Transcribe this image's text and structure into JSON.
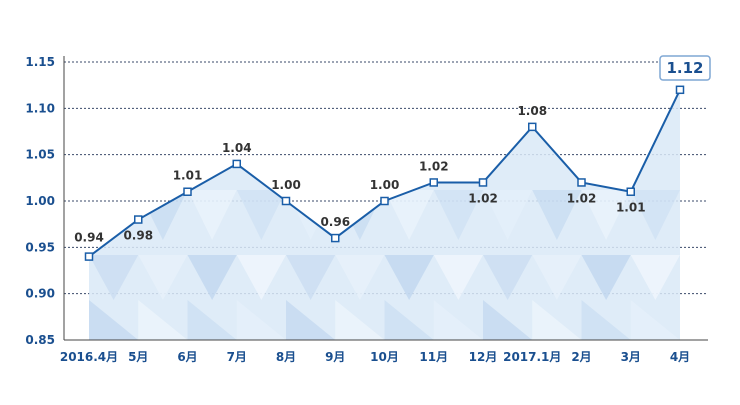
{
  "chart_data": {
    "type": "area",
    "title": "",
    "xlabel": "",
    "ylabel": "",
    "categories": [
      "2016.4月",
      "5月",
      "6月",
      "7月",
      "8月",
      "9月",
      "10月",
      "11月",
      "12月",
      "2017.1月",
      "2月",
      "3月",
      "4月"
    ],
    "series": [
      {
        "values": [
          0.94,
          0.98,
          1.01,
          1.04,
          1.0,
          0.96,
          1.0,
          1.02,
          1.02,
          1.08,
          1.02,
          1.01,
          1.12
        ]
      }
    ],
    "data_labels": [
      "0.94",
      "0.98",
      "1.01",
      "1.04",
      "1.00",
      "0.96",
      "1.00",
      "1.02",
      "1.02",
      "1.08",
      "1.02",
      "1.01",
      "1.12"
    ],
    "yticks": [
      "0.85",
      "0.90",
      "0.95",
      "1.00",
      "1.05",
      "1.10",
      "1.15"
    ],
    "ylim": [
      0.85,
      1.15
    ],
    "grid": true,
    "grid_style": "dotted",
    "colors": {
      "line": "#1a5ea8",
      "marker_fill": "#ffffff",
      "area_fill": "#d9e9f7",
      "grid": "#3a4a6a",
      "axis_text": "#1a4f8f",
      "label_text": "#333333",
      "callout_border": "#7fa7d4"
    }
  }
}
